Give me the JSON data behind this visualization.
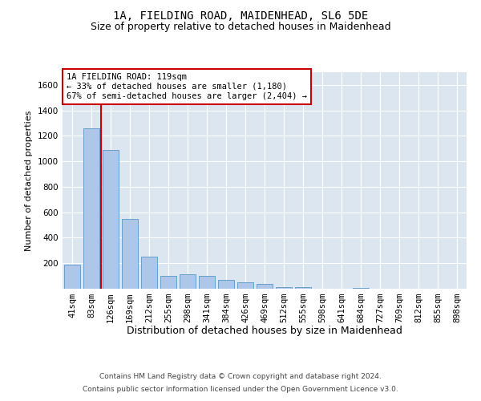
{
  "title1": "1A, FIELDING ROAD, MAIDENHEAD, SL6 5DE",
  "title2": "Size of property relative to detached houses in Maidenhead",
  "xlabel": "Distribution of detached houses by size in Maidenhead",
  "ylabel": "Number of detached properties",
  "footer1": "Contains HM Land Registry data © Crown copyright and database right 2024.",
  "footer2": "Contains public sector information licensed under the Open Government Licence v3.0.",
  "bar_labels": [
    "41sqm",
    "83sqm",
    "126sqm",
    "169sqm",
    "212sqm",
    "255sqm",
    "298sqm",
    "341sqm",
    "384sqm",
    "426sqm",
    "469sqm",
    "512sqm",
    "555sqm",
    "598sqm",
    "641sqm",
    "684sqm",
    "727sqm",
    "769sqm",
    "812sqm",
    "855sqm",
    "898sqm"
  ],
  "bar_values": [
    190,
    1260,
    1090,
    550,
    255,
    100,
    115,
    100,
    70,
    50,
    35,
    15,
    10,
    2,
    0,
    5,
    0,
    0,
    0,
    0,
    0
  ],
  "bar_color": "#aec6e8",
  "bar_edge_color": "#5a96c8",
  "bg_color": "#dce6f0",
  "grid_color": "#ffffff",
  "annotation_line1": "1A FIELDING ROAD: 119sqm",
  "annotation_line2": "← 33% of detached houses are smaller (1,180)",
  "annotation_line3": "67% of semi-detached houses are larger (2,404) →",
  "redline_x": 1.5,
  "ylim": [
    0,
    1700
  ],
  "yticks": [
    0,
    200,
    400,
    600,
    800,
    1000,
    1200,
    1400,
    1600
  ],
  "annotation_box_color": "#ffffff",
  "annotation_box_edge": "#cc0000",
  "redline_color": "#cc0000",
  "title1_fontsize": 10,
  "title2_fontsize": 9,
  "xlabel_fontsize": 9,
  "ylabel_fontsize": 8,
  "tick_fontsize": 7.5,
  "annotation_fontsize": 7.5
}
